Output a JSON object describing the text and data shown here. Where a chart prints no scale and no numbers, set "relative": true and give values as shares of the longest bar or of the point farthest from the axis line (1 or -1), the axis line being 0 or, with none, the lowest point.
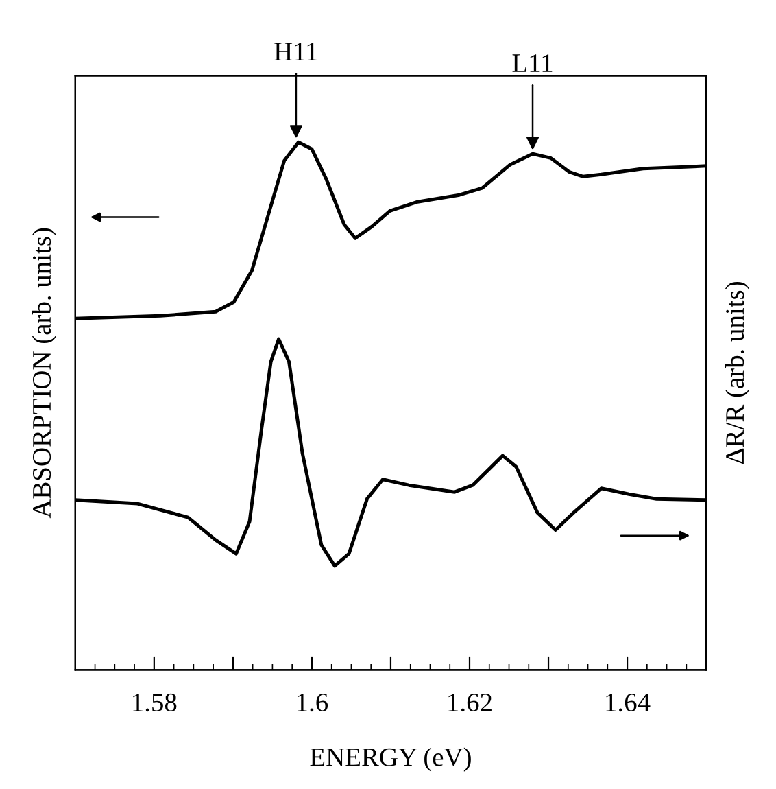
{
  "chart_data": {
    "type": "line",
    "relative": true,
    "xlabel": "ENERGY (eV)",
    "ylabel": "ABSORPTION (arb. units)",
    "y2label": "ΔR/R (arb. units)",
    "xlim": [
      1.57,
      1.65
    ],
    "xticks": [
      1.58,
      {
        "value": 1.59,
        "label": null
      },
      1.6,
      {
        "value": 1.61,
        "label": null
      },
      1.62,
      {
        "value": 1.63,
        "label": null
      },
      1.64
    ],
    "tick_labels": "x",
    "line_style": "solid",
    "marker": "none",
    "grid": false,
    "legend": false,
    "annotations": [
      {
        "text": "H11",
        "x": 1.598,
        "y": 1.0
      },
      {
        "text": "L11",
        "x": 1.628,
        "y": 0.978
      }
    ],
    "series": [
      {
        "color": "#000000",
        "x": [
          1.57,
          1.5808,
          1.5878,
          1.5901,
          1.5924,
          1.5948,
          1.5965,
          1.5983,
          1.6,
          1.6018,
          1.6041,
          1.6055,
          1.6076,
          1.6099,
          1.6134,
          1.6187,
          1.6216,
          1.6251,
          1.628,
          1.6303,
          1.6326,
          1.6344,
          1.6367,
          1.642,
          1.65
        ],
        "values": [
          0.666,
          0.671,
          0.679,
          0.697,
          0.757,
          0.879,
          0.965,
          1.0,
          0.987,
          0.931,
          0.844,
          0.818,
          0.84,
          0.87,
          0.887,
          0.9,
          0.913,
          0.957,
          0.978,
          0.97,
          0.944,
          0.935,
          0.939,
          0.95,
          0.955
        ]
      },
      {
        "color": "#000000",
        "axis": "y2",
        "x": [
          1.57,
          1.5779,
          1.5843,
          1.5878,
          1.5904,
          1.5921,
          1.5936,
          1.5948,
          1.5958,
          1.5971,
          1.5988,
          1.6012,
          1.6029,
          1.6047,
          1.607,
          1.609,
          1.6123,
          1.6181,
          1.6204,
          1.6242,
          1.6259,
          1.6286,
          1.6309,
          1.6332,
          1.6367,
          1.6402,
          1.6437,
          1.65
        ],
        "values": [
          0.322,
          0.315,
          0.289,
          0.246,
          0.22,
          0.281,
          0.454,
          0.584,
          0.627,
          0.584,
          0.411,
          0.237,
          0.197,
          0.22,
          0.324,
          0.361,
          0.35,
          0.337,
          0.35,
          0.406,
          0.385,
          0.298,
          0.265,
          0.298,
          0.344,
          0.333,
          0.324,
          0.322
        ]
      }
    ]
  }
}
